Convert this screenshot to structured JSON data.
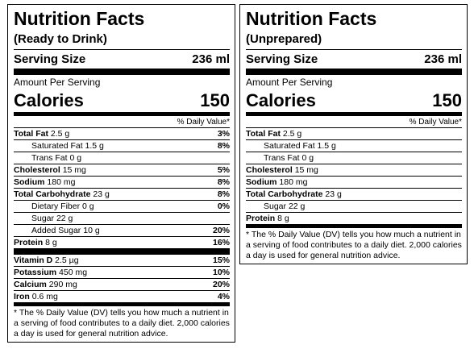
{
  "labels": [
    {
      "title": "Nutrition Facts",
      "subtitle": "(Ready to Drink)",
      "serving_size_label": "Serving Size",
      "serving_size": "236 ml",
      "amount_per_serving": "Amount Per Serving",
      "calories_label": "Calories",
      "calories": 150,
      "dv_header": "% Daily Value*",
      "nutrients": [
        {
          "name": "Total Fat",
          "amount": "2.5 g",
          "dv": "3%",
          "sub": [
            {
              "name": "Saturated Fat",
              "amount": "1.5 g",
              "dv": "8%"
            },
            {
              "name": "Trans Fat",
              "amount": "0 g"
            }
          ]
        },
        {
          "name": "Cholesterol",
          "amount": "15 mg",
          "dv": "5%"
        },
        {
          "name": "Sodium",
          "amount": "180 mg",
          "dv": "8%"
        },
        {
          "name": "Total Carbohydrate",
          "amount": "23 g",
          "dv": "8%",
          "sub": [
            {
              "name": "Dietary Fiber",
              "amount": "0 g",
              "dv": "0%"
            },
            {
              "name": "Sugar",
              "amount": "22 g"
            },
            {
              "name": "Added Sugar",
              "amount": "10 g",
              "dv": "20%"
            }
          ]
        },
        {
          "name": "Protein",
          "amount": "8 g",
          "dv": "16%"
        }
      ],
      "vitamins": [
        {
          "name": "Vitamin D",
          "amount": "2.5 µg",
          "dv": "15%"
        },
        {
          "name": "Potassium",
          "amount": "450 mg",
          "dv": "10%"
        },
        {
          "name": "Calcium",
          "amount": "290 mg",
          "dv": "20%"
        },
        {
          "name": "Iron",
          "amount": "0.6 mg",
          "dv": "4%"
        }
      ],
      "footnote": "* The % Daily Value (DV) tells you how much a nutrient in a serving of food contributes to a daily diet. 2,000 calories a day is used for general nutrition advice."
    },
    {
      "title": "Nutrition Facts",
      "subtitle": "(Unprepared)",
      "serving_size_label": "Serving Size",
      "serving_size": "236 ml",
      "amount_per_serving": "Amount Per Serving",
      "calories_label": "Calories",
      "calories": 150,
      "dv_header": "% Daily Value*",
      "nutrients": [
        {
          "name": "Total Fat",
          "amount": "2.5 g",
          "sub": [
            {
              "name": "Saturated Fat",
              "amount": "1.5 g"
            },
            {
              "name": "Trans Fat",
              "amount": "0 g"
            }
          ]
        },
        {
          "name": "Cholesterol",
          "amount": "15 mg"
        },
        {
          "name": "Sodium",
          "amount": "180 mg"
        },
        {
          "name": "Total Carbohydrate",
          "amount": "23 g",
          "sub": [
            {
              "name": "Sugar",
              "amount": "22 g"
            }
          ]
        },
        {
          "name": "Protein",
          "amount": "8 g"
        }
      ],
      "footnote": "* The % Daily Value (DV) tells you how much a nutrient in a serving of food contributes to a daily diet. 2,000 calories a day is used for general nutrition advice."
    }
  ]
}
